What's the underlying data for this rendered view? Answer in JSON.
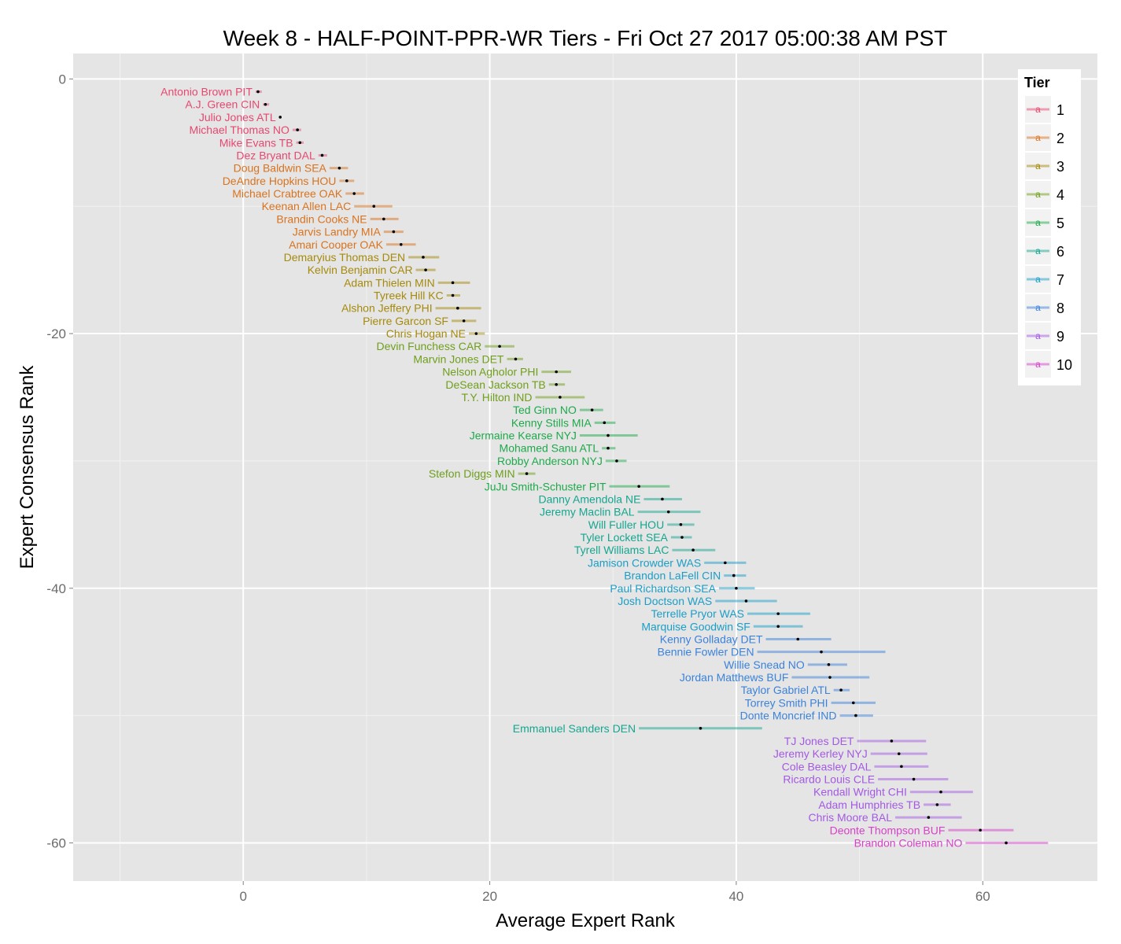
{
  "chart_data": {
    "type": "scatter",
    "title": "Week 8 - HALF-POINT-PPR-WR Tiers - Fri Oct 27 2017 05:00:38 AM PST",
    "xlabel": "Average Expert Rank",
    "ylabel": "Expert Consensus Rank",
    "xlim": [
      -13.8,
      69.3
    ],
    "ylim": [
      -63.0,
      2.0
    ],
    "x_ticks": [
      0,
      20,
      40,
      60
    ],
    "y_ticks": [
      0,
      -20,
      -40,
      -60
    ],
    "x_tick_labels": [
      "0",
      "20",
      "40",
      "60"
    ],
    "y_tick_labels": [
      "0",
      "-20",
      "-40",
      "-60"
    ],
    "grid": true,
    "legend": {
      "title": "Tier",
      "position": "top-right",
      "key_glyph": "a",
      "labels": [
        "1",
        "2",
        "3",
        "4",
        "5",
        "6",
        "7",
        "8",
        "9",
        "10"
      ]
    },
    "tier_colors": [
      "#E7486F",
      "#D9731F",
      "#A58A0C",
      "#6F9F1C",
      "#1DAA4A",
      "#16A68F",
      "#1A9EC7",
      "#3B82DB",
      "#A359E3",
      "#D741C9"
    ],
    "points": [
      {
        "label": "Antonio Brown PIT",
        "tier": 1,
        "x": 1.2,
        "lo": 1.0,
        "hi": 1.5,
        "rank": 1
      },
      {
        "label": "A.J. Green CIN",
        "tier": 1,
        "x": 1.8,
        "lo": 1.6,
        "hi": 2.1,
        "rank": 2
      },
      {
        "label": "Julio Jones ATL",
        "tier": 1,
        "x": 3.0,
        "lo": 2.9,
        "hi": 3.1,
        "rank": 3
      },
      {
        "label": "Michael Thomas NO",
        "tier": 1,
        "x": 4.4,
        "lo": 4.0,
        "hi": 4.7,
        "rank": 4
      },
      {
        "label": "Mike Evans TB",
        "tier": 1,
        "x": 4.6,
        "lo": 4.3,
        "hi": 4.9,
        "rank": 5
      },
      {
        "label": "Dez Bryant DAL",
        "tier": 1,
        "x": 6.4,
        "lo": 6.1,
        "hi": 6.8,
        "rank": 6
      },
      {
        "label": "Doug Baldwin SEA",
        "tier": 2,
        "x": 7.8,
        "lo": 7.0,
        "hi": 8.5,
        "rank": 7
      },
      {
        "label": "DeAndre Hopkins HOU",
        "tier": 2,
        "x": 8.4,
        "lo": 7.8,
        "hi": 9.0,
        "rank": 8
      },
      {
        "label": "Michael Crabtree OAK",
        "tier": 2,
        "x": 9.0,
        "lo": 8.3,
        "hi": 9.8,
        "rank": 9
      },
      {
        "label": "Keenan Allen LAC",
        "tier": 2,
        "x": 10.6,
        "lo": 9.0,
        "hi": 12.1,
        "rank": 10
      },
      {
        "label": "Brandin Cooks NE",
        "tier": 2,
        "x": 11.4,
        "lo": 10.3,
        "hi": 12.6,
        "rank": 11
      },
      {
        "label": "Jarvis Landry MIA",
        "tier": 2,
        "x": 12.2,
        "lo": 11.4,
        "hi": 13.0,
        "rank": 12
      },
      {
        "label": "Amari Cooper OAK",
        "tier": 2,
        "x": 12.8,
        "lo": 11.6,
        "hi": 14.0,
        "rank": 13
      },
      {
        "label": "Demaryius Thomas DEN",
        "tier": 3,
        "x": 14.6,
        "lo": 13.4,
        "hi": 15.9,
        "rank": 14
      },
      {
        "label": "Kelvin Benjamin CAR",
        "tier": 3,
        "x": 14.8,
        "lo": 14.0,
        "hi": 15.6,
        "rank": 15
      },
      {
        "label": "Adam Thielen MIN",
        "tier": 3,
        "x": 17.0,
        "lo": 15.8,
        "hi": 18.4,
        "rank": 16
      },
      {
        "label": "Tyreek Hill KC",
        "tier": 3,
        "x": 17.0,
        "lo": 16.5,
        "hi": 17.6,
        "rank": 17
      },
      {
        "label": "Alshon Jeffery PHI",
        "tier": 3,
        "x": 17.4,
        "lo": 15.6,
        "hi": 19.3,
        "rank": 18
      },
      {
        "label": "Pierre Garcon SF",
        "tier": 3,
        "x": 17.9,
        "lo": 16.9,
        "hi": 18.9,
        "rank": 19
      },
      {
        "label": "Chris Hogan NE",
        "tier": 3,
        "x": 18.9,
        "lo": 18.3,
        "hi": 19.6,
        "rank": 20
      },
      {
        "label": "Devin Funchess CAR",
        "tier": 4,
        "x": 20.8,
        "lo": 19.6,
        "hi": 22.0,
        "rank": 21
      },
      {
        "label": "Marvin Jones DET",
        "tier": 4,
        "x": 22.1,
        "lo": 21.4,
        "hi": 22.7,
        "rank": 22
      },
      {
        "label": "Nelson Agholor PHI",
        "tier": 4,
        "x": 25.4,
        "lo": 24.2,
        "hi": 26.6,
        "rank": 23
      },
      {
        "label": "DeSean Jackson TB",
        "tier": 4,
        "x": 25.4,
        "lo": 24.8,
        "hi": 26.1,
        "rank": 24
      },
      {
        "label": "T.Y. Hilton IND",
        "tier": 4,
        "x": 25.7,
        "lo": 23.7,
        "hi": 27.7,
        "rank": 25
      },
      {
        "label": "Ted Ginn NO",
        "tier": 5,
        "x": 28.3,
        "lo": 27.3,
        "hi": 29.2,
        "rank": 26
      },
      {
        "label": "Kenny Stills MIA",
        "tier": 5,
        "x": 29.3,
        "lo": 28.5,
        "hi": 30.2,
        "rank": 27
      },
      {
        "label": "Jermaine Kearse NYJ",
        "tier": 5,
        "x": 29.6,
        "lo": 27.3,
        "hi": 32.0,
        "rank": 28
      },
      {
        "label": "Mohamed Sanu ATL",
        "tier": 5,
        "x": 29.6,
        "lo": 29.1,
        "hi": 30.2,
        "rank": 29
      },
      {
        "label": "Robby Anderson NYJ",
        "tier": 5,
        "x": 30.3,
        "lo": 29.4,
        "hi": 31.1,
        "rank": 30
      },
      {
        "label": "Stefon Diggs MIN",
        "tier": 4,
        "x": 23.0,
        "lo": 22.3,
        "hi": 23.7,
        "rank": 31
      },
      {
        "label": "JuJu Smith-Schuster PIT",
        "tier": 5,
        "x": 32.1,
        "lo": 29.7,
        "hi": 34.6,
        "rank": 32
      },
      {
        "label": "Danny Amendola NE",
        "tier": 6,
        "x": 34.0,
        "lo": 32.5,
        "hi": 35.6,
        "rank": 33
      },
      {
        "label": "Jeremy Maclin BAL",
        "tier": 6,
        "x": 34.5,
        "lo": 32.0,
        "hi": 37.1,
        "rank": 34
      },
      {
        "label": "Will Fuller HOU",
        "tier": 6,
        "x": 35.5,
        "lo": 34.4,
        "hi": 36.6,
        "rank": 35
      },
      {
        "label": "Tyler Lockett SEA",
        "tier": 6,
        "x": 35.6,
        "lo": 34.7,
        "hi": 36.4,
        "rank": 36
      },
      {
        "label": "Tyrell Williams LAC",
        "tier": 6,
        "x": 36.5,
        "lo": 34.8,
        "hi": 38.3,
        "rank": 37
      },
      {
        "label": "Jamison Crowder WAS",
        "tier": 7,
        "x": 39.1,
        "lo": 37.4,
        "hi": 40.8,
        "rank": 38
      },
      {
        "label": "Brandon LaFell CIN",
        "tier": 7,
        "x": 39.8,
        "lo": 39.0,
        "hi": 40.8,
        "rank": 39
      },
      {
        "label": "Paul Richardson SEA",
        "tier": 7,
        "x": 40.0,
        "lo": 38.6,
        "hi": 41.5,
        "rank": 40
      },
      {
        "label": "Josh Doctson WAS",
        "tier": 7,
        "x": 40.8,
        "lo": 38.3,
        "hi": 43.3,
        "rank": 41
      },
      {
        "label": "Terrelle Pryor WAS",
        "tier": 7,
        "x": 43.4,
        "lo": 40.9,
        "hi": 46.0,
        "rank": 42
      },
      {
        "label": "Marquise Goodwin SF",
        "tier": 7,
        "x": 43.4,
        "lo": 41.4,
        "hi": 45.4,
        "rank": 43
      },
      {
        "label": "Kenny Golladay DET",
        "tier": 8,
        "x": 45.0,
        "lo": 42.4,
        "hi": 47.7,
        "rank": 44
      },
      {
        "label": "Bennie Fowler DEN",
        "tier": 8,
        "x": 46.9,
        "lo": 41.7,
        "hi": 52.1,
        "rank": 45
      },
      {
        "label": "Willie Snead NO",
        "tier": 8,
        "x": 47.5,
        "lo": 45.8,
        "hi": 49.0,
        "rank": 46
      },
      {
        "label": "Jordan Matthews BUF",
        "tier": 8,
        "x": 47.6,
        "lo": 44.5,
        "hi": 50.8,
        "rank": 47
      },
      {
        "label": "Taylor Gabriel ATL",
        "tier": 8,
        "x": 48.5,
        "lo": 47.9,
        "hi": 49.2,
        "rank": 48
      },
      {
        "label": "Torrey Smith PHI",
        "tier": 8,
        "x": 49.5,
        "lo": 47.7,
        "hi": 51.3,
        "rank": 49
      },
      {
        "label": "Donte Moncrief IND",
        "tier": 8,
        "x": 49.7,
        "lo": 48.4,
        "hi": 51.1,
        "rank": 50
      },
      {
        "label": "Emmanuel Sanders DEN",
        "tier": 6,
        "x": 37.1,
        "lo": 32.1,
        "hi": 42.1,
        "rank": 51
      },
      {
        "label": "TJ Jones DET",
        "tier": 9,
        "x": 52.6,
        "lo": 49.8,
        "hi": 55.4,
        "rank": 52
      },
      {
        "label": "Jeremy Kerley NYJ",
        "tier": 9,
        "x": 53.2,
        "lo": 50.9,
        "hi": 55.5,
        "rank": 53
      },
      {
        "label": "Cole Beasley DAL",
        "tier": 9,
        "x": 53.4,
        "lo": 51.2,
        "hi": 55.6,
        "rank": 54
      },
      {
        "label": "Ricardo Louis CLE",
        "tier": 9,
        "x": 54.4,
        "lo": 51.5,
        "hi": 57.2,
        "rank": 55
      },
      {
        "label": "Kendall Wright CHI",
        "tier": 9,
        "x": 56.6,
        "lo": 54.1,
        "hi": 59.2,
        "rank": 56
      },
      {
        "label": "Adam Humphries TB",
        "tier": 9,
        "x": 56.3,
        "lo": 55.2,
        "hi": 57.4,
        "rank": 57
      },
      {
        "label": "Chris Moore BAL",
        "tier": 9,
        "x": 55.6,
        "lo": 52.9,
        "hi": 58.3,
        "rank": 58
      },
      {
        "label": "Deonte Thompson BUF",
        "tier": 10,
        "x": 59.8,
        "lo": 57.2,
        "hi": 62.5,
        "rank": 59
      },
      {
        "label": "Brandon Coleman NO",
        "tier": 10,
        "x": 61.9,
        "lo": 58.6,
        "hi": 65.3,
        "rank": 60
      }
    ]
  }
}
